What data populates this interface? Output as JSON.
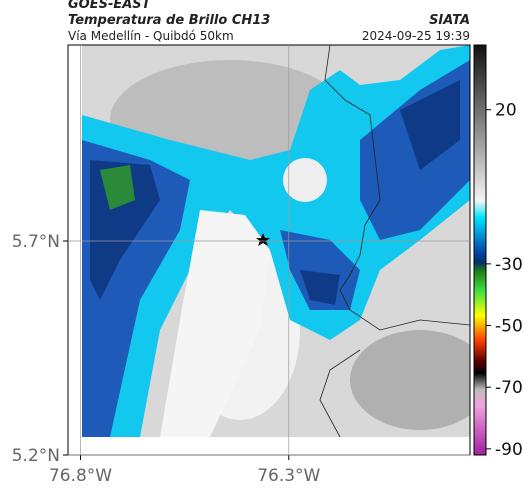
{
  "header": {
    "source": "GOES-EAST",
    "title": "Temperatura de Brillo CH13",
    "subtitle": "Vía Medellín - Quibdó 50km",
    "agency": "SIATA",
    "timestamp": "2024-09-25 19:39"
  },
  "map": {
    "lonlim": [
      -76.83,
      -75.865
    ],
    "latlim": [
      5.2,
      6.158
    ],
    "lon_ticks": [
      {
        "value": -76.8,
        "label": "76.8°W"
      },
      {
        "value": -76.3,
        "label": "76.3°W"
      }
    ],
    "lat_ticks": [
      {
        "value": 5.7,
        "label": "5.7°N"
      },
      {
        "value": 5.2,
        "label": "5.2°N"
      }
    ],
    "colorbar": {
      "lim": [
        -92,
        41
      ],
      "ticks": [
        20,
        -30,
        -50,
        -70,
        -90
      ]
    }
  }
}
